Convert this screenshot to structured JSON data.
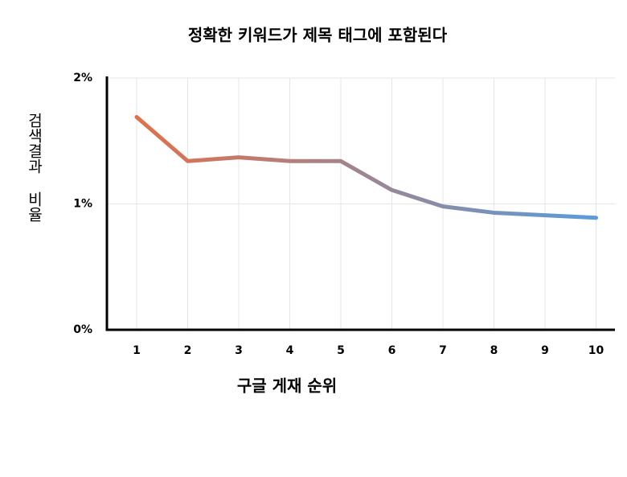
{
  "chart_data": {
    "type": "line",
    "title": "정확한 키워드가 제목 태그에 포함된다",
    "x_label": "구글 게재 순위",
    "y_label": "검색결과 비율",
    "categories": [
      "1",
      "2",
      "3",
      "4",
      "5",
      "6",
      "7",
      "8",
      "9",
      "10"
    ],
    "series": [
      {
        "colors": [
          "#e2704a",
          "#5b9bd8"
        ],
        "values": [
          1.69,
          1.34,
          1.37,
          1.34,
          1.34,
          1.11,
          0.98,
          0.93,
          0.91,
          0.89
        ]
      }
    ],
    "ylim": [
      0,
      2
    ],
    "yticks": [
      {
        "value": 0,
        "label": "0%"
      },
      {
        "value": 1,
        "label": "1%"
      },
      {
        "value": 2,
        "label": "2%"
      }
    ],
    "grid": true
  }
}
